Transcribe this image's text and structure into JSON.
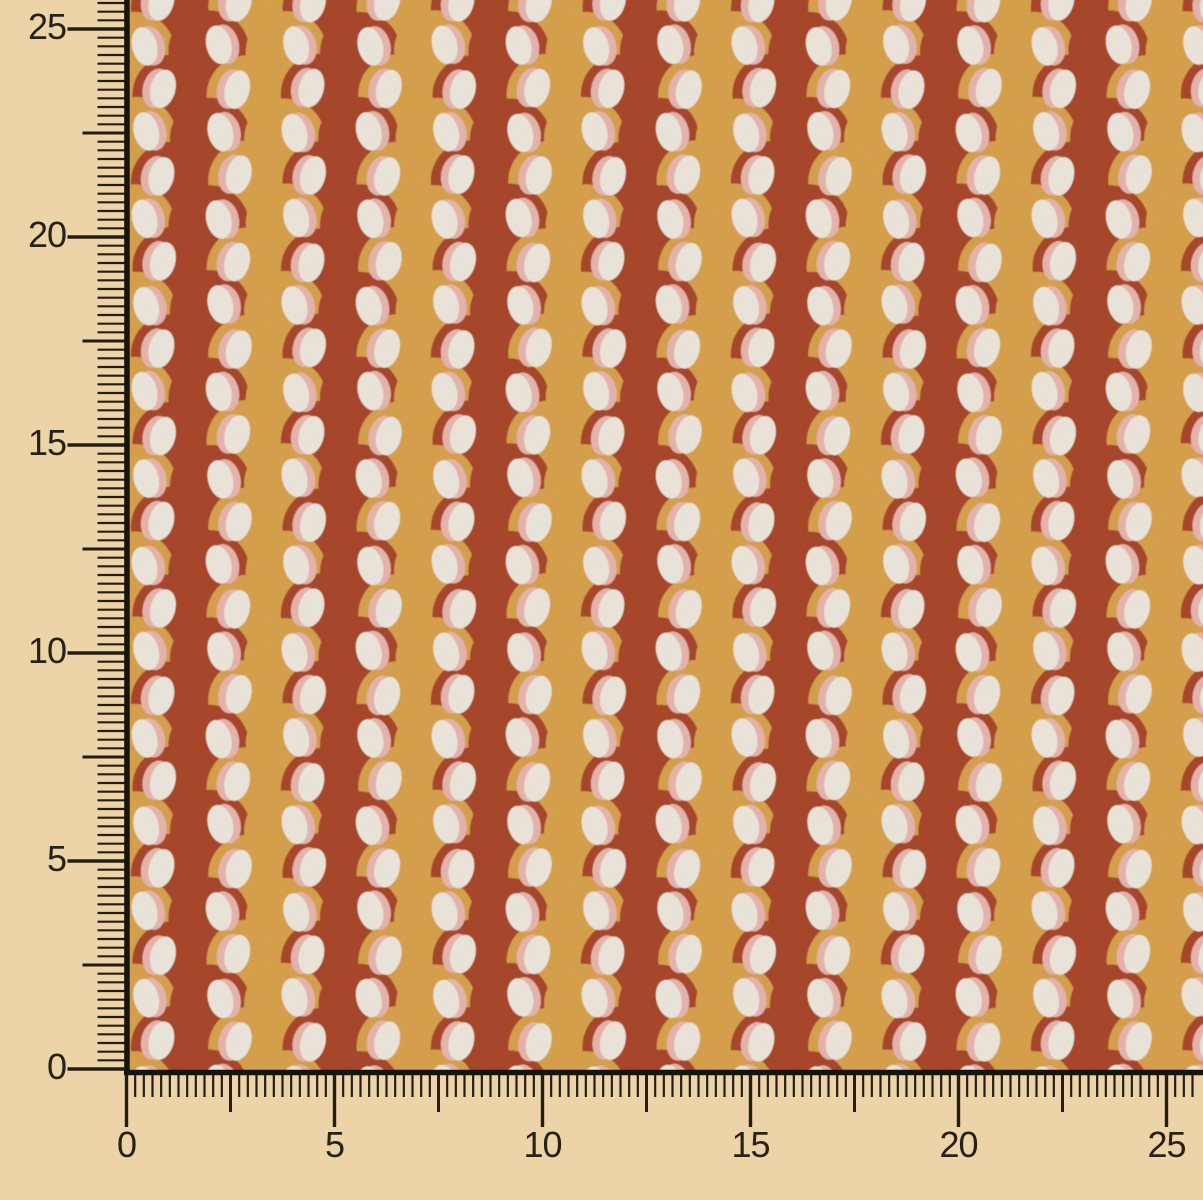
{
  "photo": {
    "background_color": "#ecd4a8"
  },
  "fabric": {
    "pattern_name": "retro-overlapping-circles",
    "colors": {
      "rust": "#b14b2f",
      "mustard": "#e2a951",
      "cream": "#f8f1e6",
      "pink": "#f2beb6"
    }
  },
  "rulers": {
    "tick_color": "#241e12",
    "number_color": "#272217",
    "edge_line_color": "#17140e",
    "vertical": {
      "labels": [
        "25",
        "20",
        "15",
        "10",
        "5",
        "0"
      ]
    },
    "horizontal": {
      "labels": [
        "0",
        "5",
        "10",
        "15",
        "20",
        "25"
      ]
    }
  }
}
